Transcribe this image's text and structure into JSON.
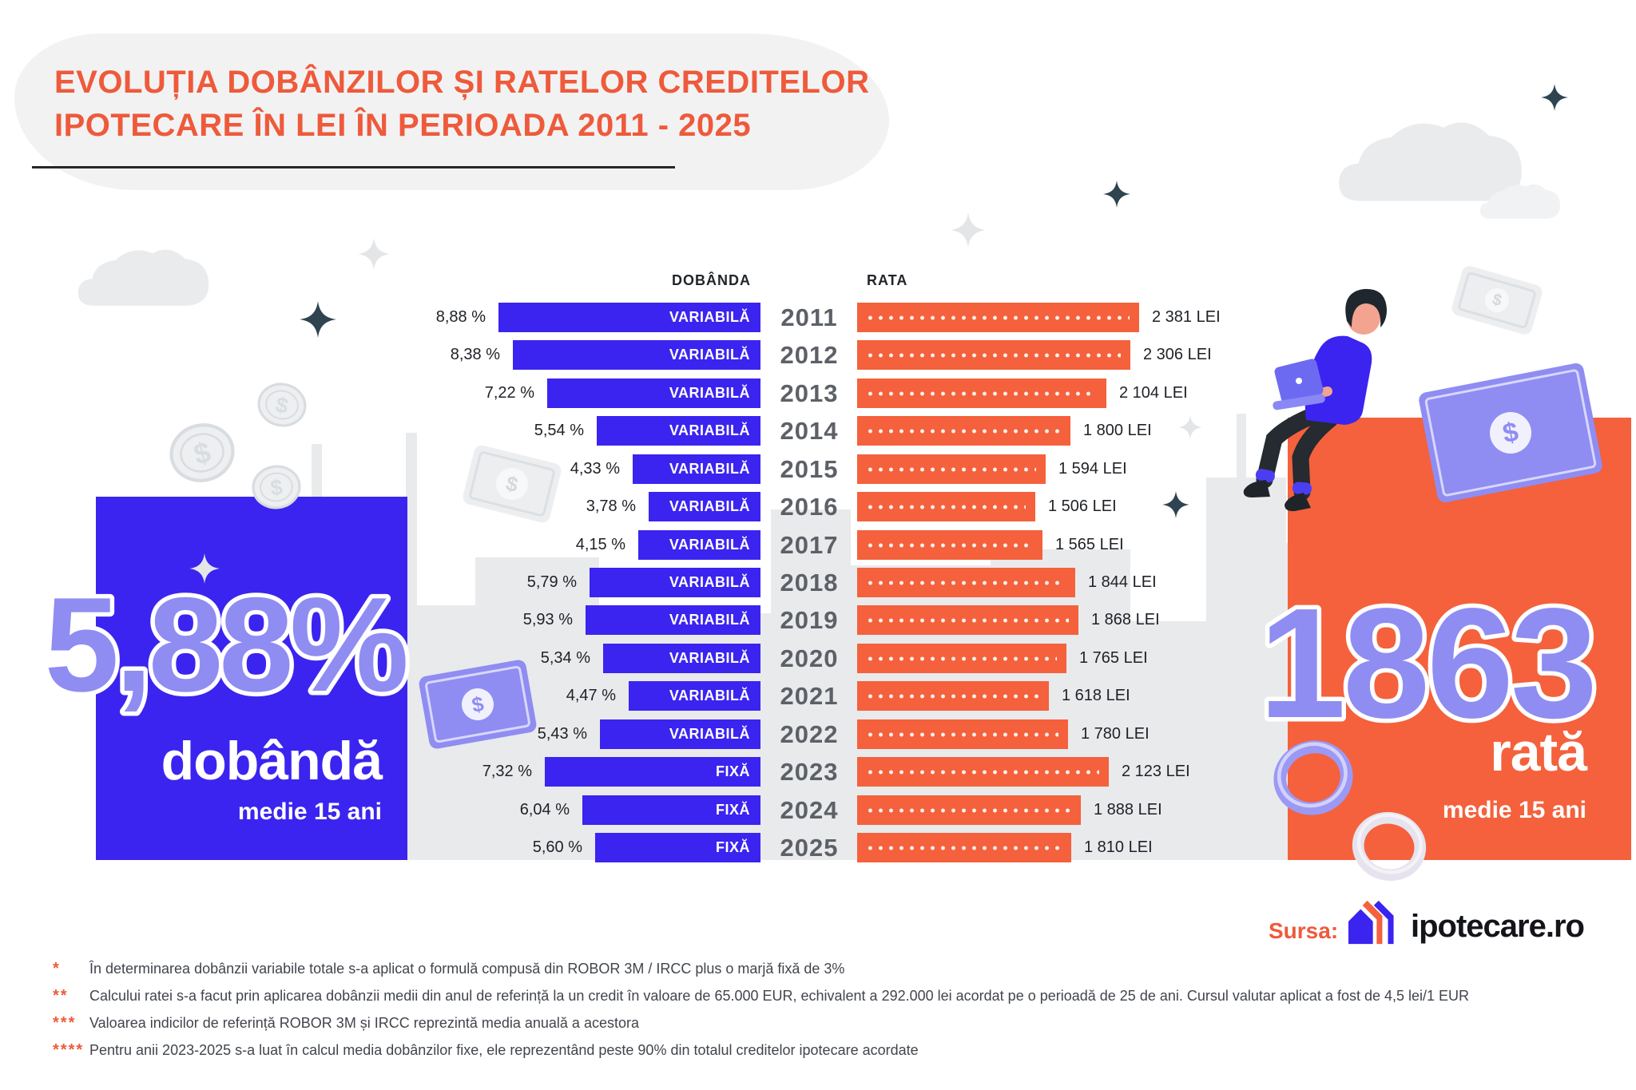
{
  "title": {
    "line1": "EVOLUȚIA DOBÂNZILOR ȘI RATELOR CREDITELOR",
    "line2": "IPOTECARE ÎN LEI ÎN PERIOADA 2011 - 2025"
  },
  "summary": {
    "left": {
      "value": "5,88%",
      "label": "dobândă",
      "sublabel": "medie 15 ani"
    },
    "right": {
      "value": "1863",
      "label": "rată",
      "sublabel": "medie 15 ani"
    }
  },
  "chart_data": {
    "type": "bar",
    "orientation": "horizontal-diverging",
    "title": "Evoluția dobânzilor și ratelor creditelor ipotecare în lei în perioada 2011 - 2025",
    "column_headers": {
      "left": "DOBÂNDA",
      "right": "RATA"
    },
    "categories": [
      "2011",
      "2012",
      "2013",
      "2014",
      "2015",
      "2016",
      "2017",
      "2018",
      "2019",
      "2020",
      "2021",
      "2022",
      "2023",
      "2024",
      "2025"
    ],
    "series": [
      {
        "name": "DOBÂNDA",
        "unit": "%",
        "color": "#3b24f0",
        "values": [
          8.88,
          8.38,
          7.22,
          5.54,
          4.33,
          3.78,
          4.15,
          5.79,
          5.93,
          5.34,
          4.47,
          5.43,
          7.32,
          6.04,
          5.6
        ],
        "value_labels": [
          "8,88 %",
          "8,38 %",
          "7,22 %",
          "5,54 %",
          "4,33 %",
          "3,78 %",
          "4,15 %",
          "5,79 %",
          "5,93 %",
          "5,34 %",
          "4,47 %",
          "5,43 %",
          "7,32 %",
          "6,04 %",
          "5,60 %"
        ],
        "bar_labels": [
          "VARIABILĂ",
          "VARIABILĂ",
          "VARIABILĂ",
          "VARIABILĂ",
          "VARIABILĂ",
          "VARIABILĂ",
          "VARIABILĂ",
          "VARIABILĂ",
          "VARIABILĂ",
          "VARIABILĂ",
          "VARIABILĂ",
          "VARIABILĂ",
          "FIXĂ",
          "FIXĂ",
          "FIXĂ"
        ]
      },
      {
        "name": "RATA",
        "unit": "LEI",
        "color": "#f4613c",
        "values": [
          2381,
          2306,
          2104,
          1800,
          1594,
          1506,
          1565,
          1844,
          1868,
          1765,
          1618,
          1780,
          2123,
          1888,
          1810
        ],
        "value_labels": [
          "2 381 LEI",
          "2 306 LEI",
          "2 104 LEI",
          "1 800 LEI",
          "1 594 LEI",
          "1 506 LEI",
          "1 565 LEI",
          "1 844 LEI",
          "1 868 LEI",
          "1 765 LEI",
          "1 618 LEI",
          "1 780 LEI",
          "2 123 LEI",
          "1 888 LEI",
          "1 810 LEI"
        ]
      }
    ],
    "xlim_interest": [
      0,
      9.2
    ],
    "xlim_rate": [
      0,
      2500
    ],
    "grid": false,
    "legend_position": "none"
  },
  "footnotes": [
    {
      "marker": "*",
      "text": "În determinarea dobânzii variabile totale s-a aplicat o formulă compusă din ROBOR 3M / IRCC plus o marjă fixă de 3%"
    },
    {
      "marker": "**",
      "text": "Calcului ratei s-a facut prin aplicarea dobânzii medii din anul de referință la un credit în valoare de 65.000 EUR, echivalent a 292.000 lei acordat pe o perioadă de 25 de ani. Cursul valutar aplicat a fost de 4,5 lei/1 EUR"
    },
    {
      "marker": "***",
      "text": "Valoarea indicilor de referință ROBOR 3M și IRCC reprezintă media anuală a acestora"
    },
    {
      "marker": "****",
      "text": "Pentru anii 2023-2025 s-a luat în calcul media dobânzilor fixe, ele reprezentând peste 90% din totalul creditelor ipotecare acordate"
    }
  ],
  "source": {
    "label": "Sursa:",
    "name": "ipotecare.ro"
  },
  "colors": {
    "blue": "#3b24f0",
    "orange": "#f4613c",
    "periwinkle": "#8f8df2",
    "title_orange": "#ee5a3b",
    "year_gray": "#5d6167",
    "text_dark": "#1e2126",
    "footnote_text": "#41454c",
    "skyline_gray": "#e9eaec",
    "sparkle_dark": "#2e4450",
    "decor_light_gray": "#e8eaec"
  },
  "decor": {
    "icons": [
      "cloud-icon",
      "sparkle-icon",
      "coin-icon",
      "banknote-icon",
      "person-laptop-illustration",
      "city-skyline-illustration",
      "house-logo-icon",
      "dollar-sign-icon"
    ]
  }
}
